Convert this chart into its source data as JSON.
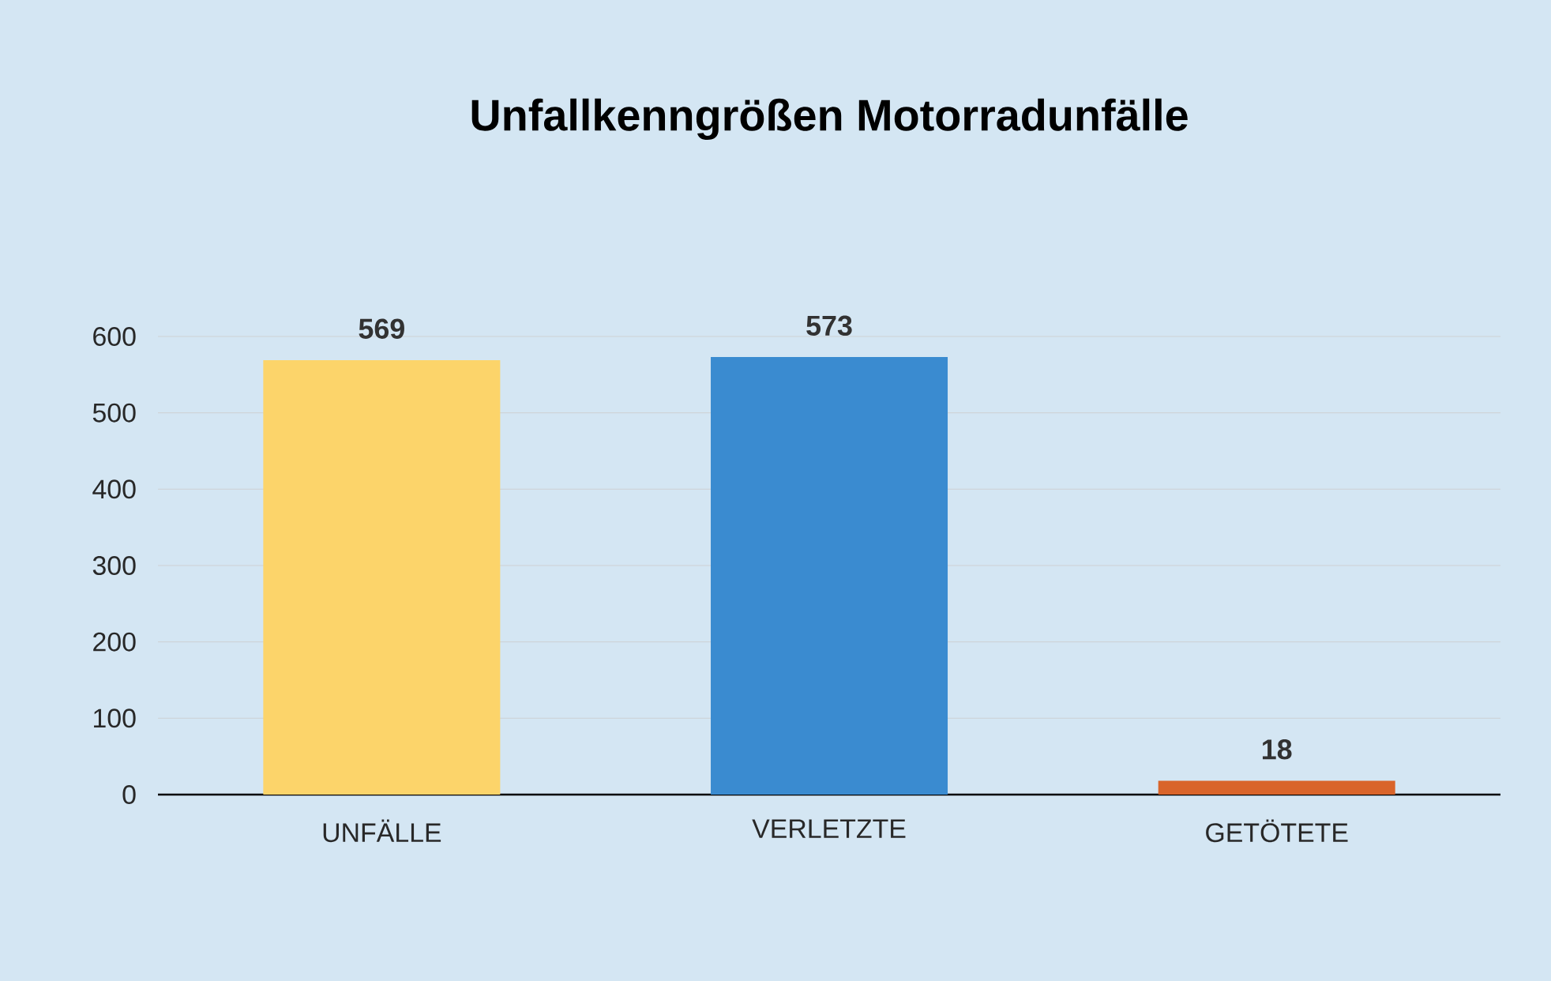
{
  "chart_data": {
    "type": "bar",
    "title": "Unfallkenngrößen Motorradunfälle",
    "categories": [
      "UNFÄLLE",
      "VERLETZTE",
      "GETÖTETE"
    ],
    "values": [
      569,
      573,
      18
    ],
    "colors": [
      "#fcd46a",
      "#3a8bd0",
      "#d9642a"
    ],
    "ylim": [
      0,
      600
    ],
    "yticks": [
      0,
      100,
      200,
      300,
      400,
      500,
      600
    ],
    "grid": "y",
    "data_labels": true
  }
}
